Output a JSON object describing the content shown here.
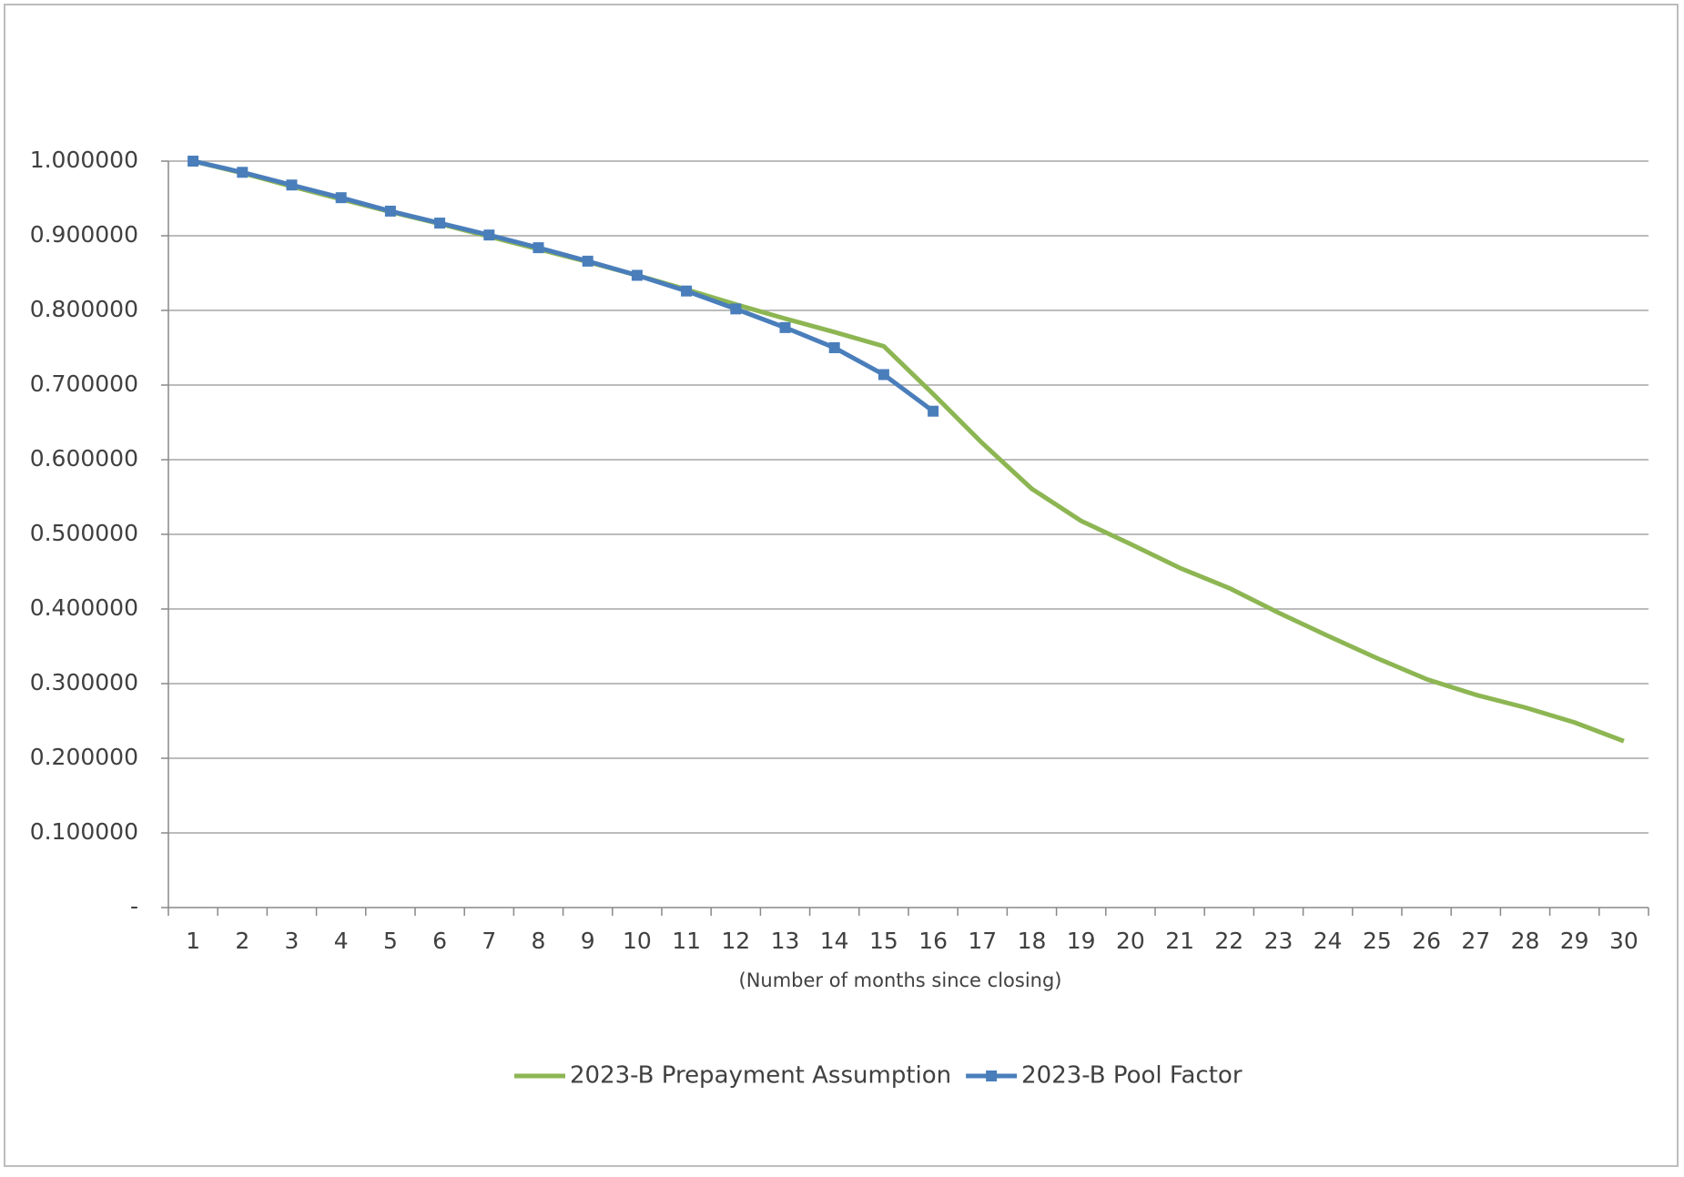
{
  "chart_data": {
    "type": "line",
    "categories": [
      1,
      2,
      3,
      4,
      5,
      6,
      7,
      8,
      9,
      10,
      11,
      12,
      13,
      14,
      15,
      16,
      17,
      18,
      19,
      20,
      21,
      22,
      23,
      24,
      25,
      26,
      27,
      28,
      29,
      30
    ],
    "x_label": "(Number  of months since closing)",
    "series": [
      {
        "name": "2023-B Prepayment Assumption",
        "color": "#8db653",
        "values": [
          1.0,
          0.984,
          0.966,
          0.949,
          0.932,
          0.916,
          0.899,
          0.882,
          0.865,
          0.847,
          0.828,
          0.808,
          0.789,
          0.771,
          0.752,
          0.688,
          0.622,
          0.561,
          0.518,
          0.487,
          0.455,
          0.428,
          0.395,
          0.364,
          0.334,
          0.306,
          0.285,
          0.268,
          0.248,
          0.223
        ]
      },
      {
        "name": "2023-B Pool Factor",
        "color": "#4a7ebb",
        "marker": "square",
        "values": [
          1.0,
          0.985,
          0.968,
          0.951,
          0.933,
          0.917,
          0.901,
          0.884,
          0.866,
          0.847,
          0.826,
          0.802,
          0.777,
          0.75,
          0.714,
          0.665,
          null,
          null,
          null,
          null,
          null,
          null,
          null,
          null,
          null,
          null,
          null,
          null,
          null,
          null
        ]
      }
    ],
    "ylim": [
      0,
      1
    ],
    "yticks": [
      {
        "value": 0,
        "label": "-"
      },
      {
        "value": 0.1,
        "label": "0.100000"
      },
      {
        "value": 0.2,
        "label": "0.200000"
      },
      {
        "value": 0.3,
        "label": "0.300000"
      },
      {
        "value": 0.4,
        "label": "0.400000"
      },
      {
        "value": 0.5,
        "label": "0.500000"
      },
      {
        "value": 0.6,
        "label": "0.600000"
      },
      {
        "value": 0.7,
        "label": "0.700000"
      },
      {
        "value": 0.8,
        "label": "0.800000"
      },
      {
        "value": 0.9,
        "label": "0.900000"
      },
      {
        "value": 1.0,
        "label": "1.000000"
      }
    ],
    "grid": true,
    "legend": "bottom"
  }
}
